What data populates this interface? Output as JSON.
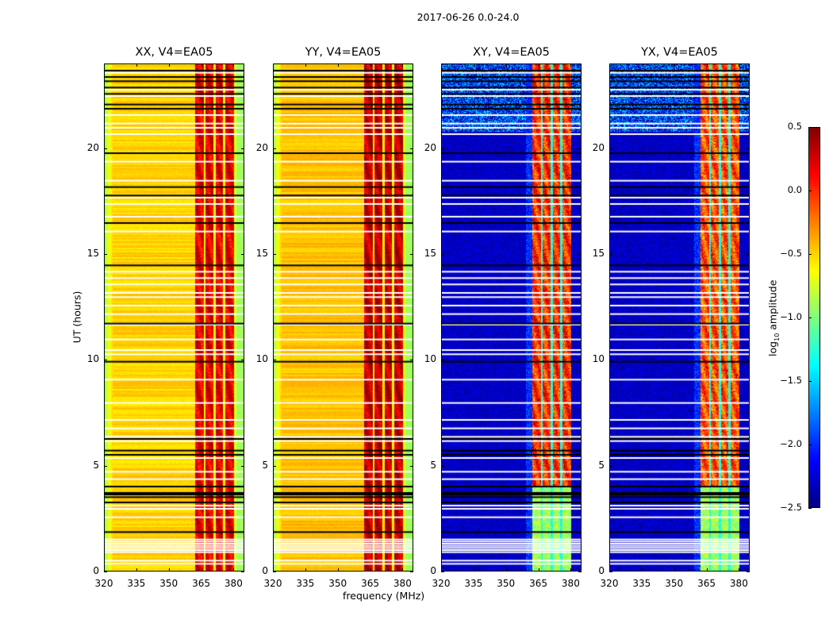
{
  "chart_data": {
    "type": "heatmap",
    "title": "2017-06-26 0.0-24.0",
    "xlabel": "frequency (MHz)",
    "ylabel": "UT (hours)",
    "xlim": [
      320,
      385
    ],
    "ylim": [
      0,
      24
    ],
    "xticks": [
      "320",
      "335",
      "350",
      "365",
      "380"
    ],
    "yticks": [
      "0",
      "5",
      "10",
      "15",
      "20"
    ],
    "colorbar": {
      "label": "log10 amplitude",
      "label_base": "log",
      "label_sub": "10",
      "label_rest": " amplitude",
      "cmap": "jet",
      "range": [
        -2.5,
        0.5
      ],
      "ticks": [
        "0.5",
        "0.0",
        "−0.5",
        "−1.0",
        "−1.5",
        "−2.0",
        "−2.5"
      ]
    },
    "signal_band_mhz": [
      362,
      380
    ],
    "band_gaps_mhz": [
      366.5,
      371,
      375.5
    ],
    "flagged_white_hours": [
      0.4,
      0.55,
      0.95,
      1.05,
      1.15,
      1.25,
      1.35,
      1.45,
      1.55,
      2.6,
      3.0,
      3.15,
      4.4,
      4.75,
      5.4,
      6.2,
      6.4,
      6.8,
      7.2,
      8.0,
      9.1,
      10.3,
      10.5,
      11.0,
      11.7,
      12.2,
      12.6,
      13.0,
      13.2,
      13.6,
      13.9,
      14.2,
      16.1,
      16.8,
      17.4,
      17.7,
      18.5,
      19.4,
      20.7,
      21.0,
      21.2,
      21.6,
      22.5,
      22.8,
      23.6
    ],
    "flagged_black_hours": [
      1.9,
      3.3,
      3.55,
      3.75,
      4.05,
      5.55,
      5.75,
      6.3,
      9.95,
      11.75,
      14.5,
      16.5,
      17.8,
      18.2,
      19.8,
      21.9,
      22.1,
      22.6,
      22.9,
      23.2,
      23.4,
      23.7
    ],
    "panels": [
      {
        "title": "XX, V4=EA05",
        "kind": "parallel",
        "baseline": -0.5,
        "band_level": 0.2,
        "edge_level": -0.9
      },
      {
        "title": "YY, V4=EA05",
        "kind": "parallel",
        "baseline": -0.45,
        "band_level": 0.3,
        "edge_level": -0.9
      },
      {
        "title": "XY, V4=EA05",
        "kind": "cross",
        "baseline": -2.3,
        "band_level": 0.0,
        "edge_level": -1.4
      },
      {
        "title": "YX, V4=EA05",
        "kind": "cross",
        "baseline": -2.3,
        "band_level": -0.1,
        "edge_level": -1.4
      }
    ]
  }
}
